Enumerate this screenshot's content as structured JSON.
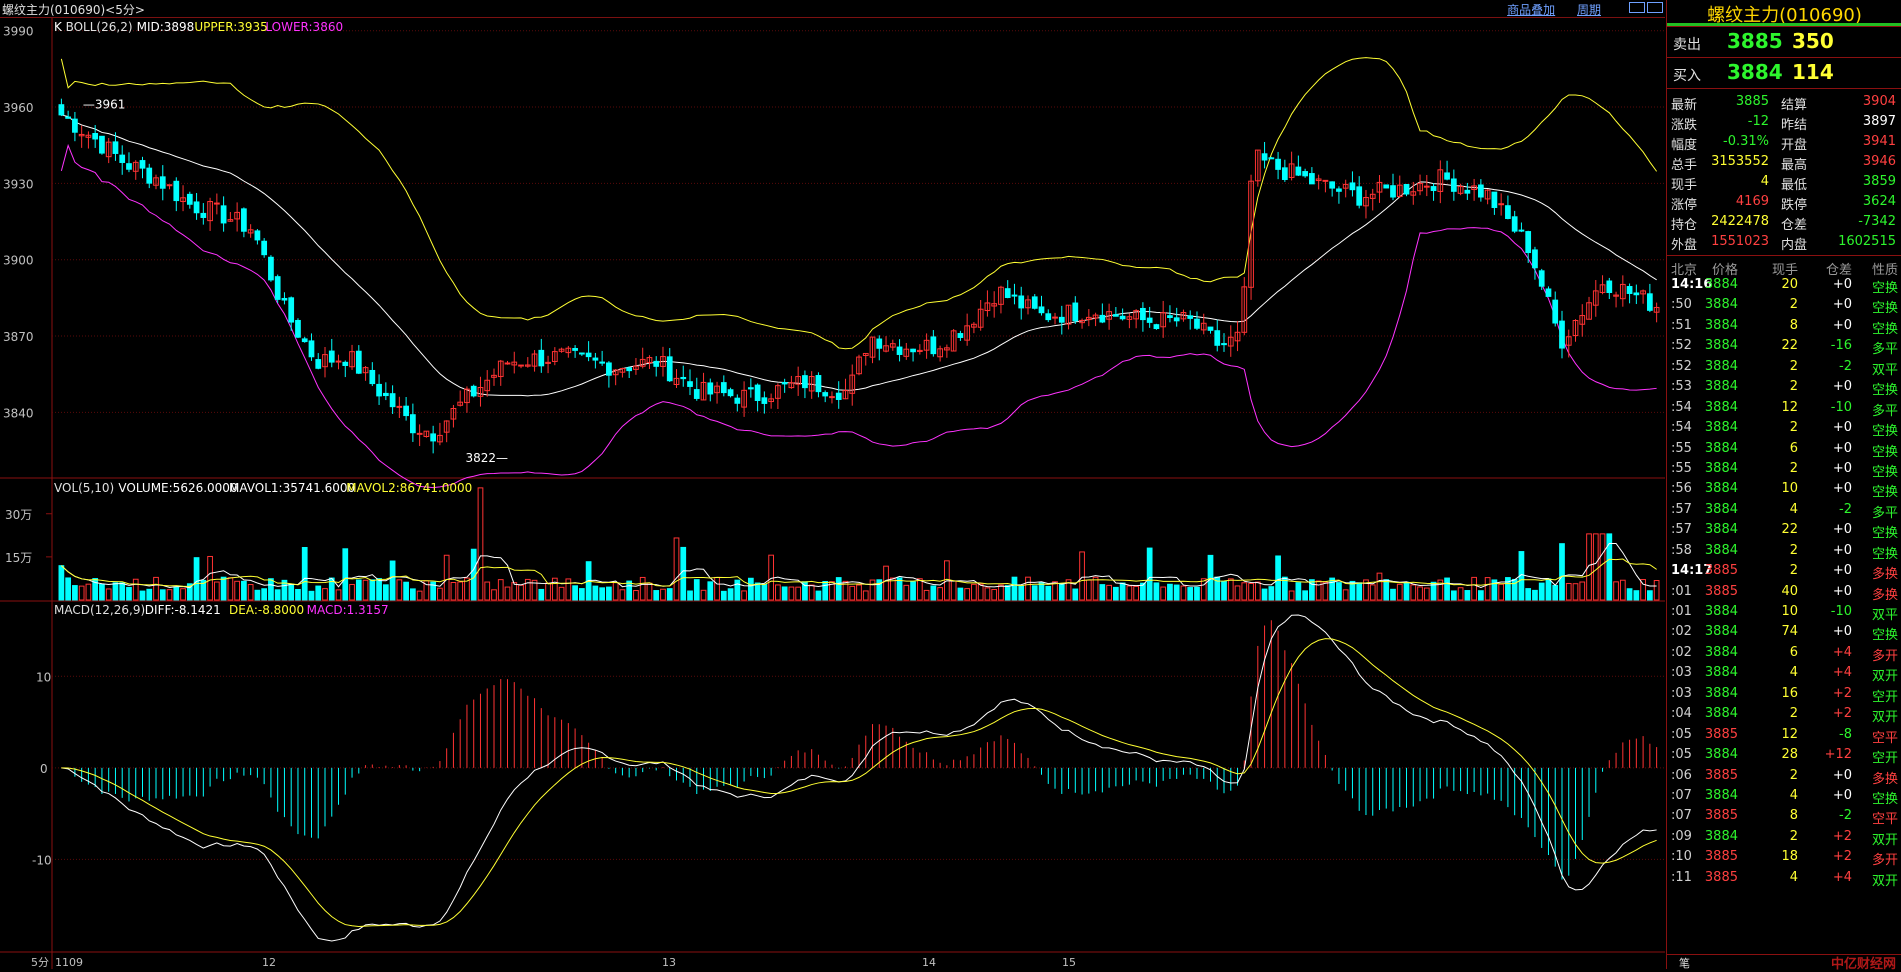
{
  "window": {
    "title": "螺纹主力(010690)<5分>",
    "links": [
      "商品叠加",
      "周期"
    ]
  },
  "price_panel": {
    "legend": [
      {
        "text": "K",
        "color": "#ffffff"
      },
      {
        "text": "BOLL(26,2)",
        "color": "#e0e0e0"
      },
      {
        "text": "MID:3898",
        "color": "#ffffff"
      },
      {
        "text": "UPPER:3935",
        "color": "#ffff33"
      },
      {
        "text": "LOWER:3860",
        "color": "#ff33ff"
      }
    ],
    "y_ticks": [
      "3990",
      "3960",
      "3930",
      "3900",
      "3870",
      "3840"
    ],
    "annotations": {
      "high": "3961",
      "low": "3822"
    }
  },
  "volume_panel": {
    "legend": [
      {
        "text": "VOL(5,10)",
        "color": "#e0e0e0"
      },
      {
        "text": "VOLUME:5626.0000",
        "color": "#ffffff"
      },
      {
        "text": "MAVOL1:35741.6000",
        "color": "#ffffff"
      },
      {
        "text": "MAVOL2:86741.0000",
        "color": "#ffff33"
      }
    ],
    "y_ticks": [
      "30万",
      "15万"
    ]
  },
  "macd_panel": {
    "legend": [
      {
        "text": "MACD(12,26,9)",
        "color": "#e0e0e0"
      },
      {
        "text": "DIFF:-8.1421",
        "color": "#ffffff"
      },
      {
        "text": "DEA:-8.8000",
        "color": "#ffff33"
      },
      {
        "text": "MACD:1.3157",
        "color": "#ff33ff"
      }
    ],
    "y_ticks": [
      "10",
      "0",
      "-10"
    ]
  },
  "x_axis": {
    "period": "5分",
    "labels": [
      "1109",
      "12",
      "13",
      "14",
      "15"
    ]
  },
  "chart_data": {
    "type": "candlestick",
    "title": "螺纹主力(010690)<5分>",
    "price_ylim": [
      3815,
      3995
    ],
    "volume_ylim": [
      0,
      400000
    ],
    "macd_ylim": [
      -20,
      18
    ],
    "bar_count": 237,
    "colors": {
      "up": "#ff3333",
      "down": "#00ffff",
      "mid": "#ffffff",
      "upper": "#ffff33",
      "lower": "#ff33ff"
    }
  },
  "quote": {
    "instrument": "螺纹主力(010690)",
    "ask": {
      "label": "卖出",
      "price": "3885",
      "volume": "350"
    },
    "bid": {
      "label": "买入",
      "price": "3884",
      "volume": "114"
    },
    "rows": [
      {
        "l1": "最新",
        "v1": "3885",
        "c1": "grn",
        "l2": "结算",
        "v2": "3904",
        "c2": "red"
      },
      {
        "l1": "涨跌",
        "v1": "-12",
        "c1": "grn",
        "l2": "昨结",
        "v2": "3897",
        "c2": "wht"
      },
      {
        "l1": "幅度",
        "v1": "-0.31%",
        "c1": "grn",
        "l2": "开盘",
        "v2": "3941",
        "c2": "red"
      },
      {
        "l1": "总手",
        "v1": "3153552",
        "c1": "yel",
        "l2": "最高",
        "v2": "3946",
        "c2": "red"
      },
      {
        "l1": "现手",
        "v1": "4",
        "c1": "yel",
        "l2": "最低",
        "v2": "3859",
        "c2": "grn"
      },
      {
        "l1": "涨停",
        "v1": "4169",
        "c1": "red",
        "l2": "跌停",
        "v2": "3624",
        "c2": "grn"
      },
      {
        "l1": "持仓",
        "v1": "2422478",
        "c1": "yel",
        "l2": "仓差",
        "v2": "-7342",
        "c2": "grn"
      },
      {
        "l1": "外盘",
        "v1": "1551023",
        "c1": "red",
        "l2": "内盘",
        "v2": "1602515",
        "c2": "grn"
      }
    ]
  },
  "ticks_header": {
    "time": "北京",
    "price": "价格",
    "vol": "现手",
    "oi": "仓差",
    "nature": "性质"
  },
  "ticks": [
    {
      "t": "14:16",
      "big": true,
      "p": "3884",
      "pc": "grn",
      "v": "20",
      "oi": "+0",
      "n": "空换",
      "nc": "grn"
    },
    {
      "t": ":50",
      "p": "3884",
      "pc": "grn",
      "v": "2",
      "oi": "+0",
      "n": "空换",
      "nc": "grn"
    },
    {
      "t": ":51",
      "p": "3884",
      "pc": "grn",
      "v": "8",
      "oi": "+0",
      "n": "空换",
      "nc": "grn"
    },
    {
      "t": ":52",
      "p": "3884",
      "pc": "grn",
      "v": "22",
      "oi": "-16",
      "n": "多平",
      "nc": "grn"
    },
    {
      "t": ":52",
      "p": "3884",
      "pc": "grn",
      "v": "2",
      "oi": "-2",
      "n": "双平",
      "nc": "grn"
    },
    {
      "t": ":53",
      "p": "3884",
      "pc": "grn",
      "v": "2",
      "oi": "+0",
      "n": "空换",
      "nc": "grn"
    },
    {
      "t": ":54",
      "p": "3884",
      "pc": "grn",
      "v": "12",
      "oi": "-10",
      "n": "多平",
      "nc": "grn"
    },
    {
      "t": ":54",
      "p": "3884",
      "pc": "grn",
      "v": "2",
      "oi": "+0",
      "n": "空换",
      "nc": "grn"
    },
    {
      "t": ":55",
      "p": "3884",
      "pc": "grn",
      "v": "6",
      "oi": "+0",
      "n": "空换",
      "nc": "grn"
    },
    {
      "t": ":55",
      "p": "3884",
      "pc": "grn",
      "v": "2",
      "oi": "+0",
      "n": "空换",
      "nc": "grn"
    },
    {
      "t": ":56",
      "p": "3884",
      "pc": "grn",
      "v": "10",
      "oi": "+0",
      "n": "空换",
      "nc": "grn"
    },
    {
      "t": ":57",
      "p": "3884",
      "pc": "grn",
      "v": "4",
      "oi": "-2",
      "n": "多平",
      "nc": "grn"
    },
    {
      "t": ":57",
      "p": "3884",
      "pc": "grn",
      "v": "22",
      "oi": "+0",
      "n": "空换",
      "nc": "grn"
    },
    {
      "t": ":58",
      "p": "3884",
      "pc": "grn",
      "v": "2",
      "oi": "+0",
      "n": "空换",
      "nc": "grn"
    },
    {
      "t": "14:17",
      "big": true,
      "p": "3885",
      "pc": "red",
      "v": "2",
      "oi": "+0",
      "n": "多换",
      "nc": "red"
    },
    {
      "t": ":01",
      "p": "3885",
      "pc": "red",
      "v": "40",
      "oi": "+0",
      "n": "多换",
      "nc": "red"
    },
    {
      "t": ":01",
      "p": "3884",
      "pc": "grn",
      "v": "10",
      "oi": "-10",
      "n": "双平",
      "nc": "grn"
    },
    {
      "t": ":02",
      "p": "3884",
      "pc": "grn",
      "v": "74",
      "oi": "+0",
      "n": "空换",
      "nc": "grn"
    },
    {
      "t": ":02",
      "p": "3884",
      "pc": "grn",
      "v": "6",
      "oi": "+4",
      "n": "多开",
      "nc": "red"
    },
    {
      "t": ":03",
      "p": "3884",
      "pc": "grn",
      "v": "4",
      "oi": "+4",
      "n": "双开",
      "nc": "grn"
    },
    {
      "t": ":03",
      "p": "3884",
      "pc": "grn",
      "v": "16",
      "oi": "+2",
      "n": "空开",
      "nc": "grn"
    },
    {
      "t": ":04",
      "p": "3884",
      "pc": "grn",
      "v": "2",
      "oi": "+2",
      "n": "双开",
      "nc": "grn"
    },
    {
      "t": ":05",
      "p": "3885",
      "pc": "red",
      "v": "12",
      "oi": "-8",
      "n": "空平",
      "nc": "red"
    },
    {
      "t": ":05",
      "p": "3884",
      "pc": "grn",
      "v": "28",
      "oi": "+12",
      "n": "空开",
      "nc": "grn"
    },
    {
      "t": ":06",
      "p": "3885",
      "pc": "red",
      "v": "2",
      "oi": "+0",
      "n": "多换",
      "nc": "red"
    },
    {
      "t": ":07",
      "p": "3884",
      "pc": "grn",
      "v": "4",
      "oi": "+0",
      "n": "空换",
      "nc": "grn"
    },
    {
      "t": ":07",
      "p": "3885",
      "pc": "red",
      "v": "8",
      "oi": "-2",
      "n": "空平",
      "nc": "red"
    },
    {
      "t": ":09",
      "p": "3884",
      "pc": "grn",
      "v": "2",
      "oi": "+2",
      "n": "双开",
      "nc": "grn"
    },
    {
      "t": ":10",
      "p": "3885",
      "pc": "red",
      "v": "18",
      "oi": "+2",
      "n": "多开",
      "nc": "red"
    },
    {
      "t": ":11",
      "p": "3885",
      "pc": "red",
      "v": "4",
      "oi": "+4",
      "n": "双开",
      "nc": "grn"
    }
  ],
  "footer": {
    "tab": "笔",
    "watermark": "中亿财经网"
  }
}
